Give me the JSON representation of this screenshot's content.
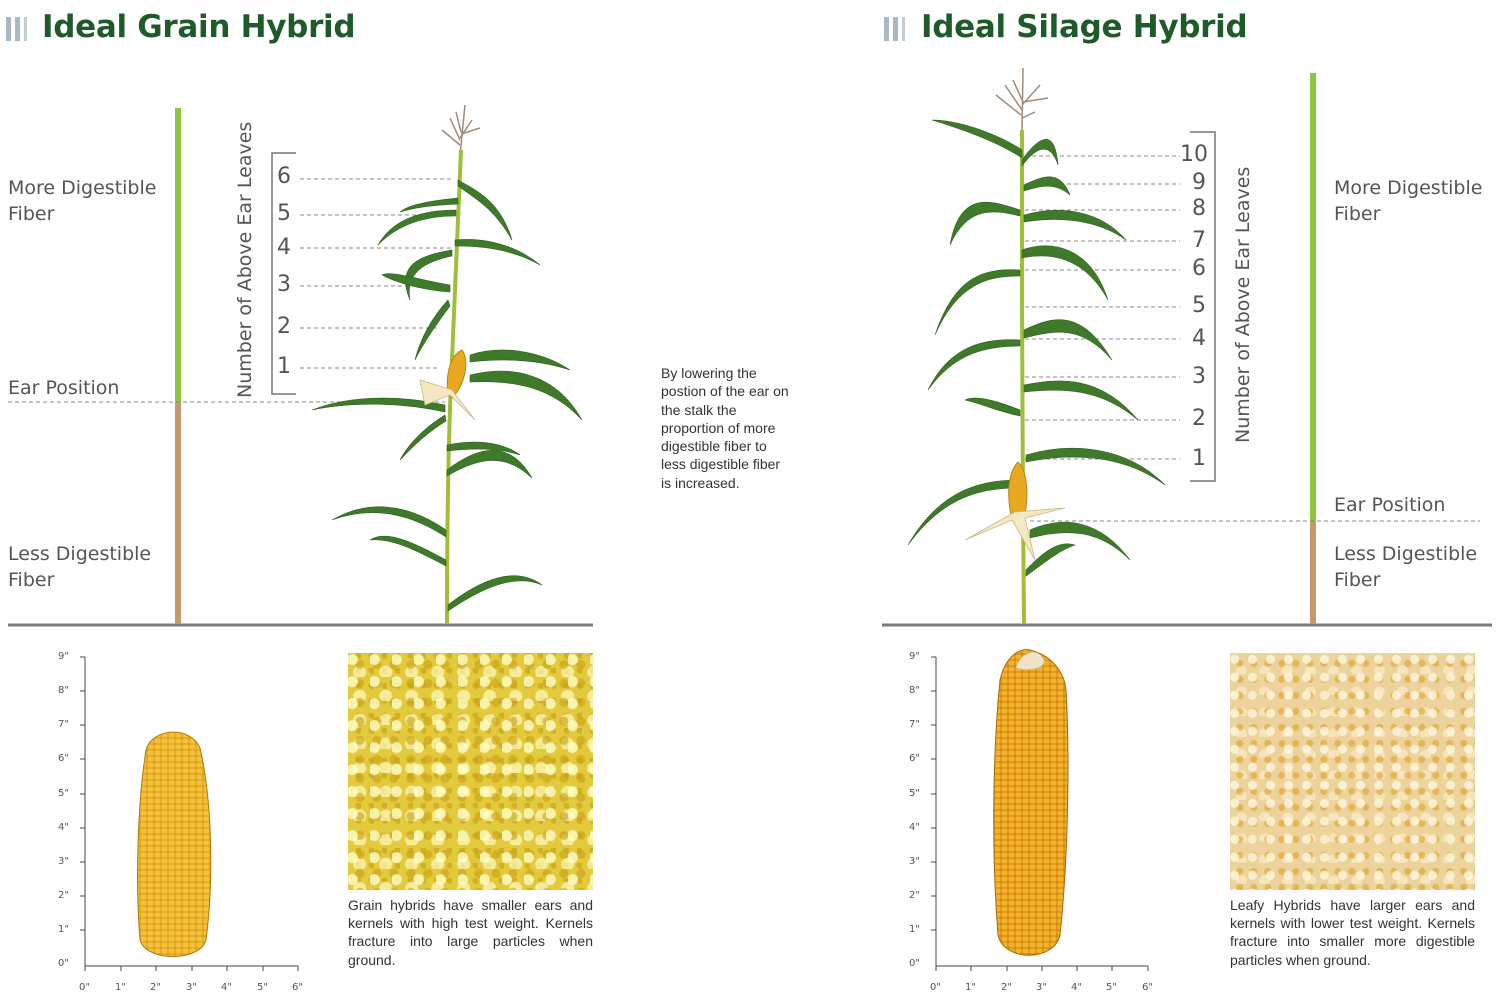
{
  "left": {
    "title": "Ideal Grain Hybrid",
    "more_fiber": "More Digestible Fiber",
    "ear_position": "Ear Position",
    "less_fiber": "Less Digestible Fiber",
    "axis_title": "Number of Above Ear Leaves",
    "leaf_numbers": [
      "6",
      "5",
      "4",
      "3",
      "2",
      "1"
    ],
    "caption": "Grain hybrids have smaller ears and kernels with high test weight. Kernels fracture into large particles when ground.",
    "ear_length_inches": 6.8
  },
  "right": {
    "title": "Ideal Silage Hybrid",
    "more_fiber": "More Digestible Fiber",
    "ear_position": "Ear Position",
    "less_fiber": "Less Digestible Fiber",
    "axis_title": "Number of Above Ear Leaves",
    "leaf_numbers": [
      "10",
      "9",
      "8",
      "7",
      "6",
      "5",
      "4",
      "3",
      "2",
      "1"
    ],
    "caption": "Leafy Hybrids have larger ears and kernels with lower test weight. Kernels fracture into smaller more digestible particles when ground.",
    "ear_length_inches": 9.0
  },
  "middle_note": "By lowering the postion of the ear on the stalk the proportion of more digestible fiber to less digestible fiber is increased.",
  "ruler": {
    "y_ticks": [
      "9\"",
      "8\"",
      "7\"",
      "6\"",
      "5\"",
      "4\"",
      "3\"",
      "2\"",
      "1\"",
      "0\""
    ],
    "x_ticks": [
      "0\"",
      "1\"",
      "2\"",
      "3\"",
      "4\"",
      "5\"",
      "6\""
    ]
  },
  "colors": {
    "title": "#1f5a2b",
    "digestible": "#8cc63f",
    "less_digestible": "#c49a6c",
    "stalk": "#9fbf3b",
    "leaf": "#3f7a2a",
    "ear": "#e8a820"
  }
}
